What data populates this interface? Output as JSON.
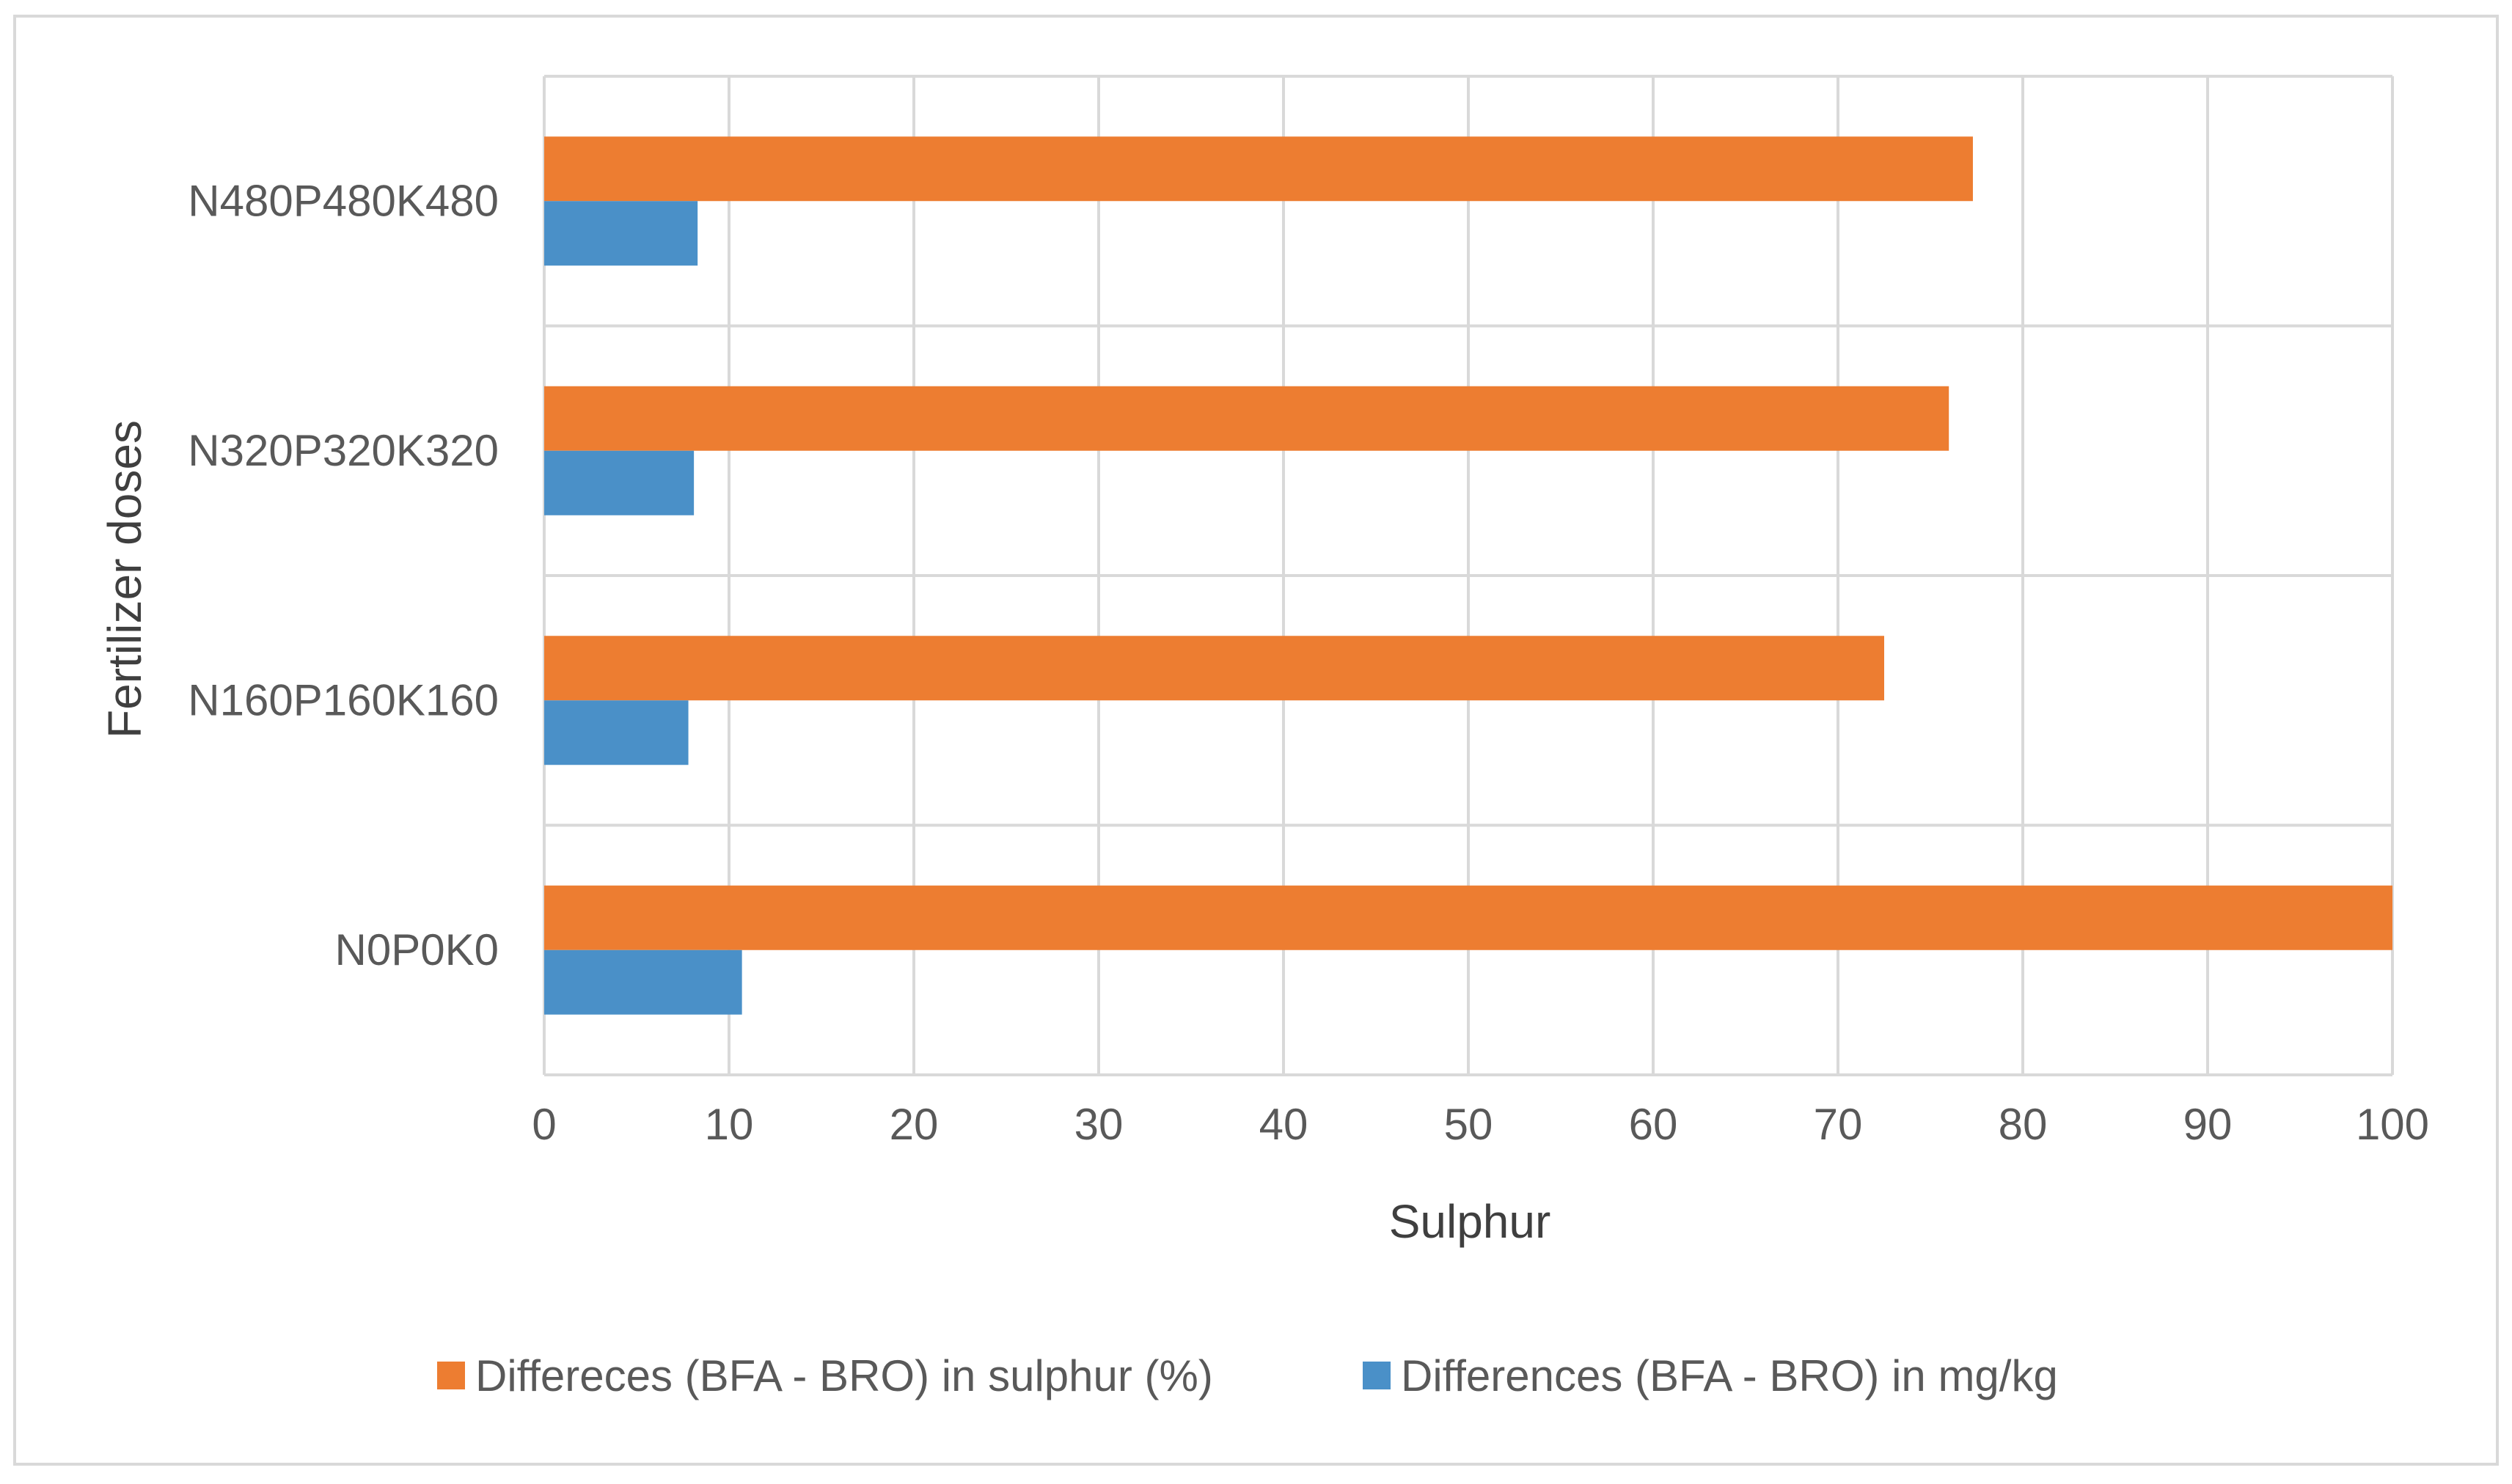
{
  "chart_data": {
    "type": "bar",
    "orientation": "horizontal",
    "title": "",
    "xlabel": "Sulphur",
    "ylabel": "Fertilizer doses",
    "xlim": [
      0,
      100
    ],
    "x_ticks": [
      0,
      10,
      20,
      30,
      40,
      50,
      60,
      70,
      80,
      90,
      100
    ],
    "categories": [
      "N0P0K0",
      "N160P160K160",
      "N320P320K320",
      "N480P480K480"
    ],
    "series": [
      {
        "name": "Differeces (BFA - BRO) in sulphur (%)",
        "color": "#ED7D31",
        "values": [
          100,
          72.5,
          76,
          77.3
        ]
      },
      {
        "name": "Differences (BFA - BRO) in mg/kg",
        "color": "#4A90C8",
        "values": [
          10.7,
          7.8,
          8.1,
          8.3
        ]
      }
    ],
    "grid": true,
    "legend_position": "bottom"
  }
}
